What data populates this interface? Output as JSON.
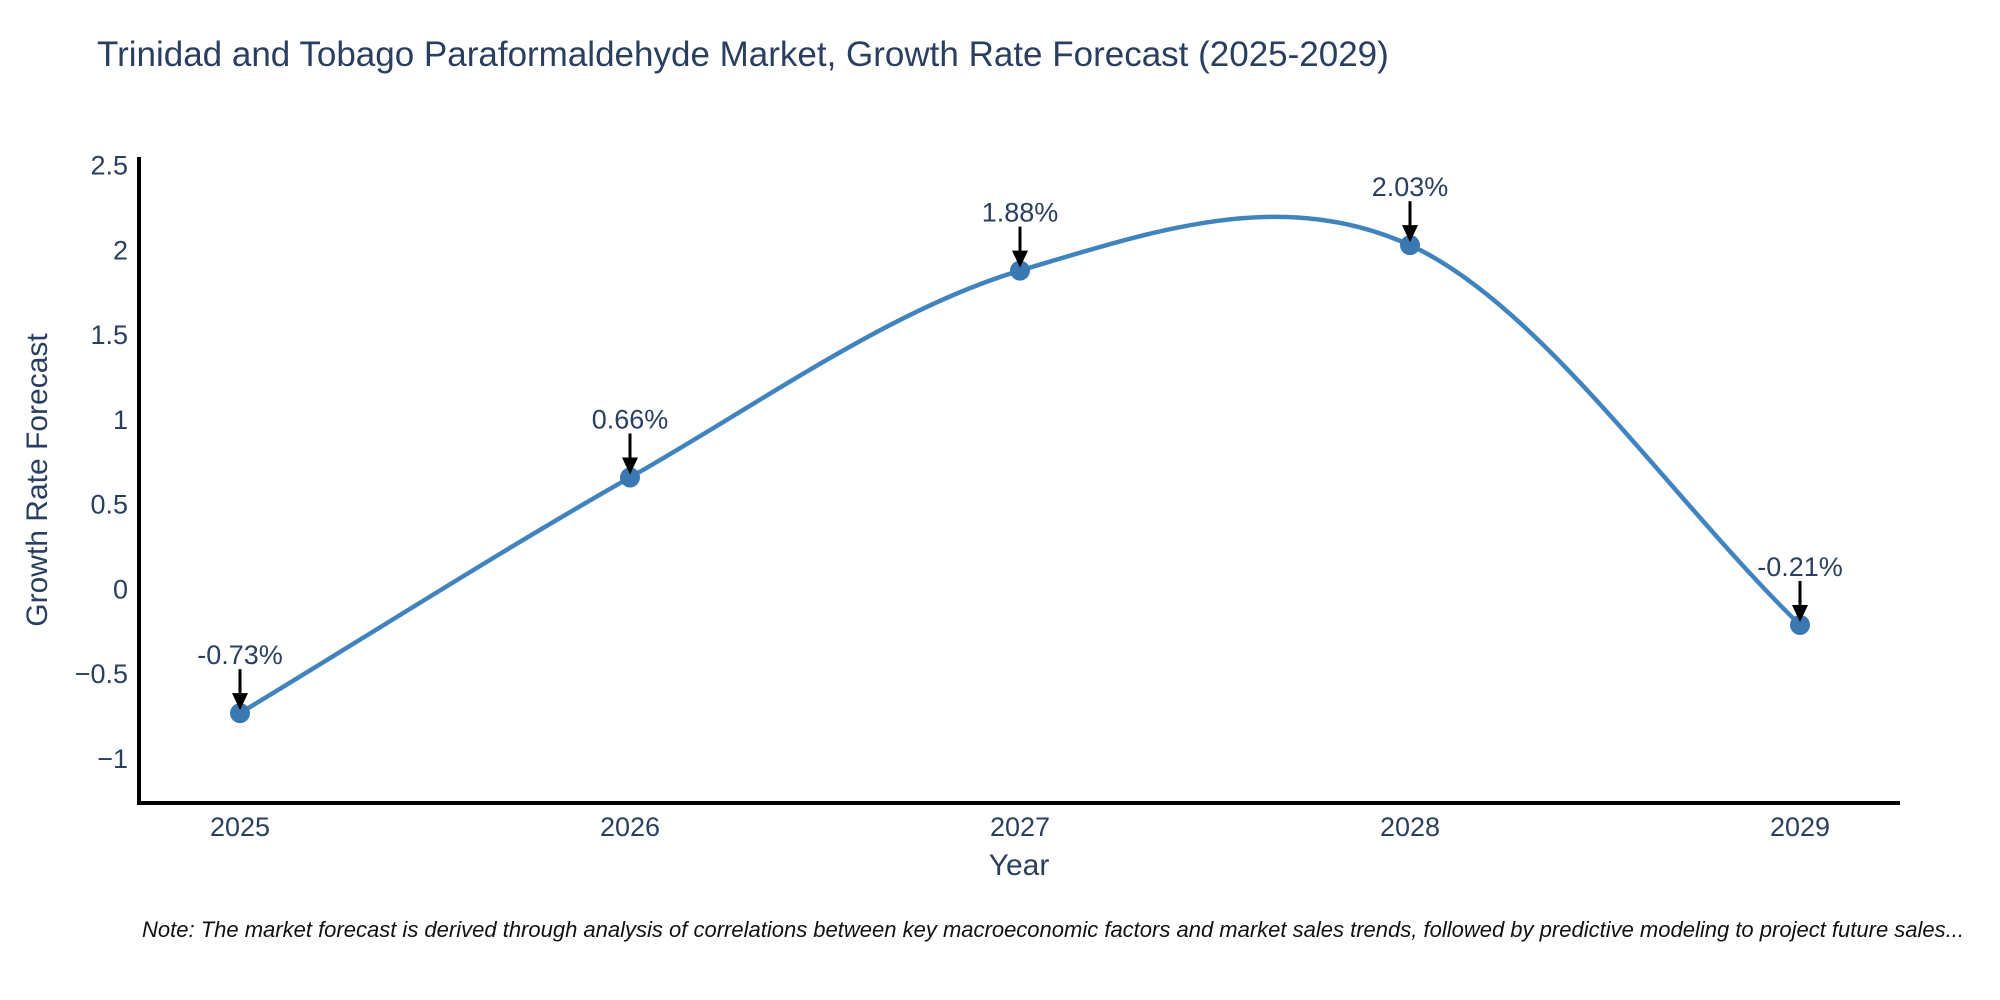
{
  "page": {
    "note": "Note: The market forecast is derived through analysis of correlations between key macroeconomic factors and market sales trends, followed by predictive modeling to project future sales..."
  },
  "chart_data": {
    "type": "line",
    "title": "Trinidad and Tobago Paraformaldehyde Market, Growth Rate Forecast (2025-2029)",
    "xlabel": "Year",
    "ylabel": "Growth Rate Forecast",
    "categories": [
      "2025",
      "2026",
      "2027",
      "2028",
      "2029"
    ],
    "values": [
      -0.73,
      0.66,
      1.88,
      2.03,
      -0.21
    ],
    "point_labels": [
      "-0.73%",
      "0.66%",
      "1.88%",
      "2.03%",
      "-0.21%"
    ],
    "yticks": [
      -1,
      -0.5,
      0,
      0.5,
      1,
      1.5,
      2,
      2.5
    ],
    "ylim": [
      -1.26,
      2.55
    ],
    "line_shape": "spline",
    "grid": false,
    "legend_position": "none",
    "colors": {
      "line": "#4183bd",
      "marker": "#3a78b2",
      "axis": "#000000",
      "text": "#2a3f5f",
      "arrow": "#000000",
      "note": "#111111"
    }
  }
}
